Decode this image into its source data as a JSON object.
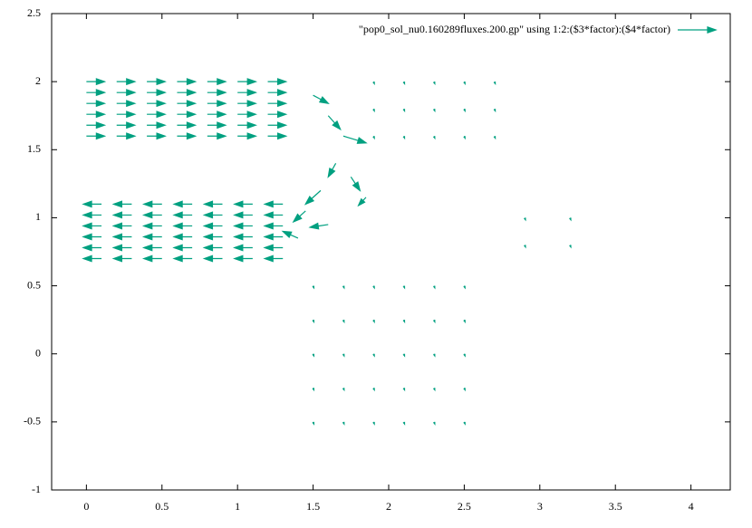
{
  "chart_data": {
    "type": "vector",
    "xlim": [
      -0.23,
      4.26
    ],
    "ylim": [
      -1,
      2.5
    ],
    "xticks": [
      0,
      0.5,
      1,
      1.5,
      2,
      2.5,
      3,
      3.5,
      4
    ],
    "yticks": [
      -1,
      -0.5,
      0,
      0.5,
      1,
      1.5,
      2,
      2.5
    ],
    "legend": "top-right",
    "series": [
      {
        "name": "\"pop0_sol_nu0.160289fluxes.200.gp\"  using 1:2:($3*factor):($4*factor)",
        "color": "#00a080",
        "x": [
          0,
          0.2,
          0.4,
          0.6,
          0.8,
          1,
          1.2,
          0,
          0.2,
          0.4,
          0.6,
          0.8,
          1,
          1.2,
          0,
          0.2,
          0.4,
          0.6,
          0.8,
          1,
          1.2,
          0,
          0.2,
          0.4,
          0.6,
          0.8,
          1,
          1.2,
          0,
          0.2,
          0.4,
          0.6,
          0.8,
          1,
          1.2,
          0,
          0.2,
          0.4,
          0.6,
          0.8,
          1,
          1.2,
          0.1,
          0.3,
          0.5,
          0.7,
          0.9,
          1.1,
          1.3,
          0.1,
          0.3,
          0.5,
          0.7,
          0.9,
          1.1,
          1.3,
          0.1,
          0.3,
          0.5,
          0.7,
          0.9,
          1.1,
          1.3,
          0.1,
          0.3,
          0.5,
          0.7,
          0.9,
          1.1,
          1.3,
          0.1,
          0.3,
          0.5,
          0.7,
          0.9,
          1.1,
          1.3,
          0.1,
          0.3,
          0.5,
          0.7,
          0.9,
          1.1,
          1.3,
          1.5,
          1.6,
          1.7,
          1.65,
          1.55,
          1.45,
          1.6,
          1.75,
          1.85,
          1.4,
          1.5,
          1.7,
          1.9,
          2.1,
          2.3,
          2.5,
          1.5,
          1.7,
          1.9,
          2.1,
          2.3,
          2.5,
          1.5,
          1.7,
          1.9,
          2.1,
          2.3,
          2.5,
          1.5,
          1.7,
          1.9,
          2.1,
          2.3,
          2.5,
          1.5,
          1.7,
          1.9,
          2.1,
          2.3,
          2.5,
          1.9,
          2.1,
          2.3,
          2.5,
          2.7,
          1.9,
          2.1,
          2.3,
          2.5,
          2.7,
          1.9,
          2.1,
          2.3,
          2.5,
          2.7,
          2.9,
          3.2,
          2.9,
          3.2
        ],
        "y": [
          1.6,
          1.6,
          1.6,
          1.6,
          1.6,
          1.6,
          1.6,
          1.68,
          1.68,
          1.68,
          1.68,
          1.68,
          1.68,
          1.68,
          1.76,
          1.76,
          1.76,
          1.76,
          1.76,
          1.76,
          1.76,
          1.84,
          1.84,
          1.84,
          1.84,
          1.84,
          1.84,
          1.84,
          1.92,
          1.92,
          1.92,
          1.92,
          1.92,
          1.92,
          1.92,
          2,
          2,
          2,
          2,
          2,
          2,
          2,
          0.7,
          0.7,
          0.7,
          0.7,
          0.7,
          0.7,
          0.7,
          0.78,
          0.78,
          0.78,
          0.78,
          0.78,
          0.78,
          0.78,
          0.86,
          0.86,
          0.86,
          0.86,
          0.86,
          0.86,
          0.86,
          0.94,
          0.94,
          0.94,
          0.94,
          0.94,
          0.94,
          0.94,
          1.02,
          1.02,
          1.02,
          1.02,
          1.02,
          1.02,
          1.02,
          1.1,
          1.1,
          1.1,
          1.1,
          1.1,
          1.1,
          1.1,
          1.9,
          1.75,
          1.6,
          1.4,
          1.2,
          1.05,
          0.95,
          1.3,
          1.15,
          0.85,
          -0.5,
          -0.5,
          -0.5,
          -0.5,
          -0.5,
          -0.5,
          -0.25,
          -0.25,
          -0.25,
          -0.25,
          -0.25,
          -0.25,
          0,
          0,
          0,
          0,
          0,
          0,
          0.25,
          0.25,
          0.25,
          0.25,
          0.25,
          0.25,
          0.5,
          0.5,
          0.5,
          0.5,
          0.5,
          0.5,
          1.6,
          1.6,
          1.6,
          1.6,
          1.6,
          1.8,
          1.8,
          1.8,
          1.8,
          1.8,
          2,
          2,
          2,
          2,
          2,
          0.8,
          0.8,
          1,
          1
        ],
        "dx": [
          0.12,
          0.12,
          0.12,
          0.12,
          0.12,
          0.12,
          0.12,
          0.12,
          0.12,
          0.12,
          0.12,
          0.12,
          0.12,
          0.12,
          0.12,
          0.12,
          0.12,
          0.12,
          0.12,
          0.12,
          0.12,
          0.12,
          0.12,
          0.12,
          0.12,
          0.12,
          0.12,
          0.12,
          0.12,
          0.12,
          0.12,
          0.12,
          0.12,
          0.12,
          0.12,
          0.12,
          0.12,
          0.12,
          0.12,
          0.12,
          0.12,
          0.12,
          -0.12,
          -0.12,
          -0.12,
          -0.12,
          -0.12,
          -0.12,
          -0.12,
          -0.12,
          -0.12,
          -0.12,
          -0.12,
          -0.12,
          -0.12,
          -0.12,
          -0.12,
          -0.12,
          -0.12,
          -0.12,
          -0.12,
          -0.12,
          -0.12,
          -0.12,
          -0.12,
          -0.12,
          -0.12,
          -0.12,
          -0.12,
          -0.12,
          -0.12,
          -0.12,
          -0.12,
          -0.12,
          -0.12,
          -0.12,
          -0.12,
          -0.12,
          -0.12,
          -0.12,
          -0.12,
          -0.12,
          -0.12,
          -0.12,
          0.1,
          0.08,
          0.15,
          -0.05,
          -0.1,
          -0.08,
          -0.12,
          0.06,
          -0.05,
          -0.1,
          0.005,
          0.005,
          0.005,
          0.005,
          0.005,
          0.005,
          0.005,
          0.005,
          0.005,
          0.005,
          0.005,
          0.005,
          0.005,
          0.005,
          0.005,
          0.005,
          0.005,
          0.005,
          0.005,
          0.005,
          0.005,
          0.005,
          0.005,
          0.005,
          0.005,
          0.005,
          0.005,
          0.005,
          0.005,
          0.005,
          0.005,
          0.005,
          0.005,
          0.005,
          0.005,
          0.005,
          0.005,
          0.005,
          0.005,
          0.005,
          0.005,
          0.005,
          0.005,
          0.005,
          0.005,
          0.005,
          0.005,
          0.005,
          0.005
        ],
        "dy": [
          0,
          0,
          0,
          0,
          0,
          0,
          0,
          0,
          0,
          0,
          0,
          0,
          0,
          0,
          0,
          0,
          0,
          0,
          0,
          0,
          0,
          0,
          0,
          0,
          0,
          0,
          0,
          0,
          0,
          0,
          0,
          0,
          0,
          0,
          0,
          0,
          0,
          0,
          0,
          0,
          0,
          0,
          0,
          0,
          0,
          0,
          0,
          0,
          0,
          0,
          0,
          0,
          0,
          0,
          0,
          0,
          0,
          0,
          0,
          0,
          0,
          0,
          0,
          0,
          0,
          0,
          0,
          0,
          0,
          0,
          0,
          0,
          0,
          0,
          0,
          0,
          0,
          0,
          0,
          0,
          0,
          0,
          0,
          0,
          -0.06,
          -0.1,
          -0.05,
          -0.1,
          -0.1,
          -0.08,
          -0.02,
          -0.1,
          -0.06,
          0.05,
          -0.015,
          -0.015,
          -0.015,
          -0.015,
          -0.015,
          -0.015,
          -0.015,
          -0.015,
          -0.015,
          -0.015,
          -0.015,
          -0.015,
          -0.015,
          -0.015,
          -0.015,
          -0.015,
          -0.015,
          -0.015,
          -0.015,
          -0.015,
          -0.015,
          -0.015,
          -0.015,
          -0.015,
          -0.015,
          -0.015,
          -0.015,
          -0.015,
          -0.015,
          -0.015,
          -0.015,
          -0.015,
          -0.015,
          -0.015,
          -0.015,
          -0.015,
          -0.015,
          -0.015,
          -0.015,
          -0.015,
          -0.015,
          -0.015,
          -0.015,
          -0.015,
          -0.015,
          -0.015,
          -0.015,
          -0.015,
          -0.015
        ]
      }
    ]
  }
}
